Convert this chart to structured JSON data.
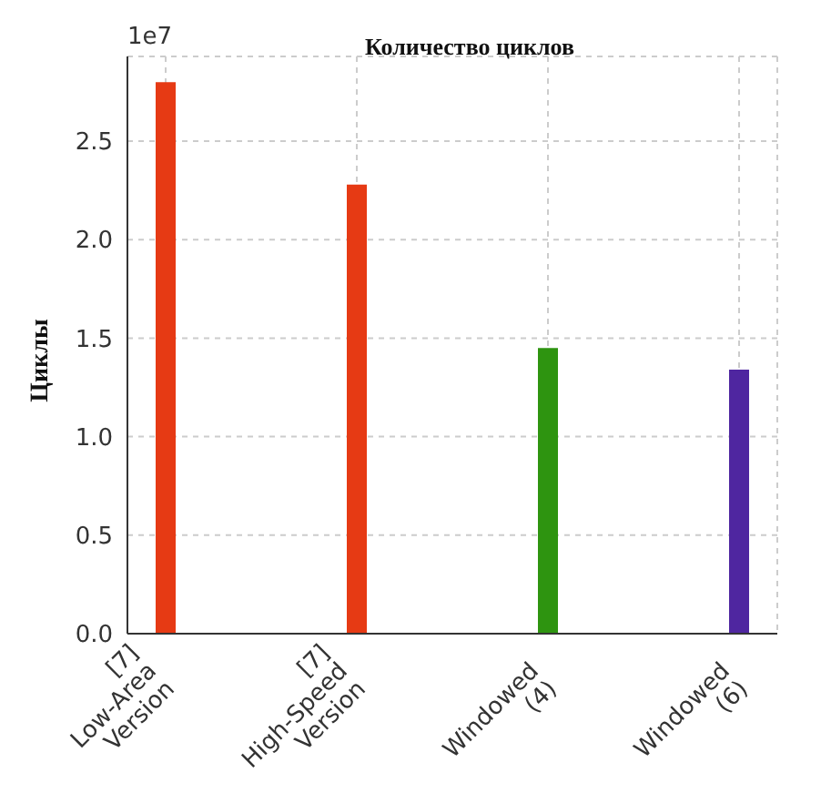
{
  "chart_data": {
    "type": "bar",
    "title": "Количество циклов",
    "ylabel": "Циклы",
    "categories": [
      "[7]\nLow-Area\nVersion",
      "[7]\nHigh-Speed\nVersion",
      "Windowed\n(4)",
      "Windowed\n(6)"
    ],
    "values": [
      2.8,
      2.28,
      1.45,
      1.34
    ],
    "colors": [
      "#e63a14",
      "#e63a14",
      "#2e9410",
      "#4f26a0"
    ],
    "ylim": [
      0,
      2.93
    ],
    "yticks": [
      {
        "value": 0,
        "label": "0.0"
      },
      {
        "value": 0.5,
        "label": "0.5"
      },
      {
        "value": 1,
        "label": "1.0"
      },
      {
        "value": 1.5,
        "label": "1.5"
      },
      {
        "value": 2,
        "label": "2.0"
      },
      {
        "value": 2.5,
        "label": "2.5"
      }
    ],
    "annotations": [
      "1e7"
    ],
    "grid": true
  }
}
